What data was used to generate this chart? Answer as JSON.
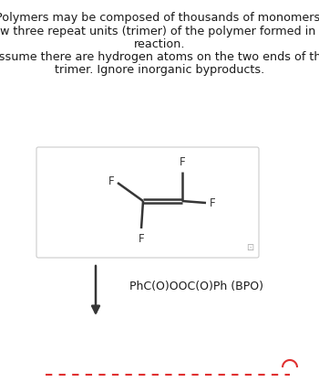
{
  "text_line1": "Polymers may be composed of thousands of monomers.",
  "text_line2": "Draw three repeat units (trimer) of the polymer formed in this\nreaction.\nAssume there are hydrogen atoms on the two ends of the\ntrimer. Ignore inorganic byproducts.",
  "reagent_text": "PhC(O)OOC(O)Ph (BPO)",
  "background_color": "#ffffff",
  "box_bg": "#ffffff",
  "box_border": "#cccccc",
  "arrow_color": "#363636",
  "molecule_color": "#363636",
  "dashed_line_color": "#e03030",
  "text_color": "#1a1a1a",
  "text_fontsize": 9.2,
  "mol_fontsize": 8.5,
  "reagent_fontsize": 9.0
}
